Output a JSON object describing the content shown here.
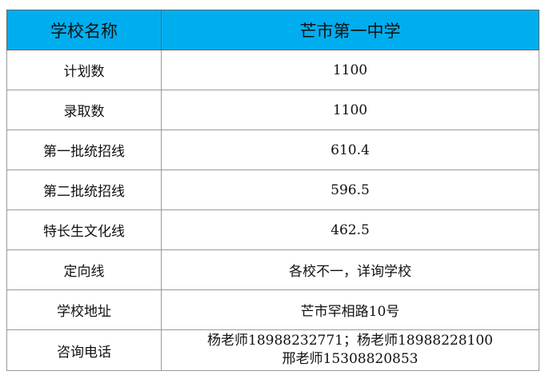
{
  "header": {
    "label": "学校名称",
    "value": "芒市第一中学"
  },
  "rows": [
    {
      "label": "计划数",
      "value": "1100"
    },
    {
      "label": "录取数",
      "value": "1100"
    },
    {
      "label": "第一批统招线",
      "value": "610.4"
    },
    {
      "label": "第二批统招线",
      "value": "596.5"
    },
    {
      "label": "特长生文化线",
      "value": "462.5"
    },
    {
      "label": "定向线",
      "value": "各校不一，详询学校"
    },
    {
      "label": "学校地址",
      "value": "芒市罕相路10号"
    },
    {
      "label": "咨询电话",
      "value": "杨老师18988232771；杨老师18988228100",
      "value2": "邢老师15308820853"
    }
  ],
  "colors": {
    "header_bg": "#00aeef"
  }
}
